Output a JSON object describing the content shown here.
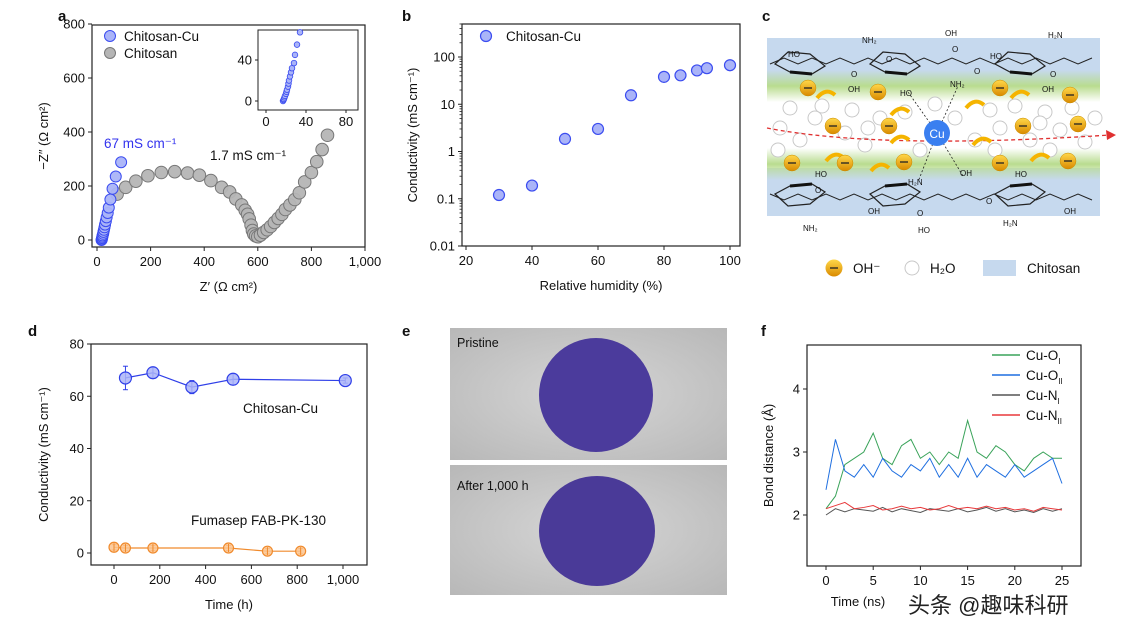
{
  "panel_labels": [
    "a",
    "b",
    "c",
    "d",
    "e",
    "f"
  ],
  "chart_data": [
    {
      "id": "a",
      "type": "scatter",
      "xlabel": "Z′ (Ω cm²)",
      "ylabel": "−Z″ (Ω cm²)",
      "xlim": [
        -10,
        1000
      ],
      "ylim": [
        -25,
        800
      ],
      "xticks": [
        0,
        200,
        400,
        600,
        800,
        1000
      ],
      "xtick_labels": [
        "0",
        "200",
        "400",
        "600",
        "800",
        "1,000"
      ],
      "yticks": [
        0,
        200,
        400,
        600,
        800
      ],
      "ytick_labels": [
        "0",
        "200",
        "400",
        "600",
        "800"
      ],
      "legend": "top-left",
      "annotations": [
        "67 mS cm⁻¹",
        "1.7 mS cm⁻¹"
      ],
      "series": [
        {
          "name": "Chitosan-Cu",
          "color": "#3b4cf0",
          "fill": "#aab4f8",
          "x": [
            17,
            18,
            19,
            20,
            21,
            23,
            24,
            26,
            28,
            30,
            33,
            36,
            40,
            44,
            50,
            58,
            70,
            90
          ],
          "y": [
            0,
            3,
            7,
            12,
            17,
            23,
            30,
            38,
            47,
            57,
            70,
            84,
            100,
            120,
            150,
            190,
            235,
            288
          ]
        },
        {
          "name": "Chitosan",
          "color": "#777777",
          "fill": "#b5b5b5",
          "x": [
            75,
            107,
            145,
            190,
            240,
            290,
            338,
            382,
            425,
            465,
            495,
            518,
            540,
            553,
            562,
            568,
            575,
            580,
            585,
            592,
            600,
            610,
            622,
            635,
            648,
            662,
            676,
            690,
            703,
            720,
            738,
            755,
            775,
            800,
            820,
            840,
            860
          ],
          "y": [
            170,
            195,
            218,
            238,
            250,
            253,
            248,
            240,
            220,
            195,
            178,
            152,
            130,
            110,
            95,
            78,
            55,
            35,
            22,
            15,
            12,
            18,
            28,
            38,
            50,
            65,
            80,
            95,
            113,
            130,
            150,
            175,
            215,
            250,
            290,
            335,
            388
          ]
        }
      ],
      "inset": {
        "xlim": [
          -5,
          88
        ],
        "ylim": [
          -5,
          68
        ],
        "xticks": [
          0,
          40,
          80
        ],
        "xtick_labels": [
          "0",
          "40",
          "80"
        ],
        "yticks": [
          0,
          40
        ],
        "ytick_labels": [
          "0",
          "40"
        ],
        "series": [
          {
            "name": "Chitosan-Cu",
            "x": [
              17,
              17.5,
              18,
              18.5,
              19,
              20,
              20.5,
              21,
              22,
              22.5,
              23,
              24,
              25,
              26,
              28,
              29,
              31,
              34
            ],
            "y": [
              0,
              1,
              2,
              3.5,
              5,
              7,
              9,
              11,
              14,
              17,
              20,
              24,
              28,
              32,
              37,
              45,
              55,
              67
            ]
          }
        ]
      }
    },
    {
      "id": "b",
      "type": "scatter",
      "xlabel": "Relative humidity (%)",
      "ylabel": "Conductivity (mS cm⁻¹)",
      "yscale": "log",
      "xlim": [
        19,
        102
      ],
      "ylim": [
        0.01,
        500
      ],
      "xticks": [
        20,
        40,
        60,
        80,
        100
      ],
      "xtick_labels": [
        "20",
        "40",
        "60",
        "80",
        "100"
      ],
      "yticks": [
        0.01,
        0.1,
        1,
        10,
        100
      ],
      "ytick_labels": [
        "0.01",
        "0.1",
        "1",
        "10",
        "100"
      ],
      "legend": "top-left",
      "series": [
        {
          "name": "Chitosan-Cu",
          "color": "#3b4cf0",
          "fill": "#aab4f8",
          "x": [
            30,
            40,
            50,
            60,
            70,
            80,
            85,
            90,
            93,
            100
          ],
          "y": [
            0.12,
            0.19,
            1.85,
            3.0,
            15.5,
            38,
            41,
            52,
            58,
            67
          ]
        }
      ]
    },
    {
      "id": "d",
      "type": "line",
      "xlabel": "Time (h)",
      "ylabel": "Conductivity (mS cm⁻¹)",
      "xlim": [
        -100,
        1100
      ],
      "ylim": [
        -5,
        80
      ],
      "xticks": [
        0,
        200,
        400,
        600,
        800,
        1000
      ],
      "xtick_labels": [
        "0",
        "200",
        "400",
        "600",
        "800",
        "1,000"
      ],
      "yticks": [
        0,
        20,
        40,
        60,
        80
      ],
      "ytick_labels": [
        "0",
        "20",
        "40",
        "60",
        "80"
      ],
      "series": [
        {
          "name": "Chitosan-Cu",
          "color": "#2f3fe8",
          "fill": "#aab4f8",
          "x": [
            50,
            170,
            340,
            520,
            1010
          ],
          "y": [
            67,
            69,
            63.5,
            66.5,
            66
          ],
          "err": [
            4.5,
            2,
            2.5,
            2,
            1
          ]
        },
        {
          "name": "Fumasep FAB-PK-130",
          "color": "#f08a2c",
          "fill": "#fbc48f",
          "x": [
            0,
            50,
            170,
            500,
            670,
            815
          ],
          "y": [
            2.2,
            1.9,
            1.9,
            1.9,
            0.7,
            0.7
          ],
          "err": [
            1,
            1,
            1,
            1,
            1,
            1
          ]
        }
      ]
    },
    {
      "id": "f",
      "type": "line",
      "xlabel": "Time (ns)",
      "ylabel": "Bond distance (Å)",
      "xlim": [
        -2,
        27
      ],
      "ylim": [
        1.3,
        4.7
      ],
      "xticks": [
        0,
        5,
        10,
        15,
        20,
        25
      ],
      "xtick_labels": [
        "0",
        "5",
        "10",
        "15",
        "20",
        "25"
      ],
      "yticks": [
        2,
        3,
        4
      ],
      "ytick_labels": [
        "2",
        "3",
        "4"
      ],
      "legend": "top-right",
      "x": [
        0,
        1,
        2,
        3,
        4,
        5,
        6,
        7,
        8,
        9,
        10,
        11,
        12,
        13,
        14,
        15,
        16,
        17,
        18,
        19,
        20,
        21,
        22,
        23,
        24,
        25
      ],
      "series": [
        {
          "name": "Cu-O",
          "sub": "I",
          "color": "#3aa35a",
          "y": [
            2.1,
            2.3,
            2.8,
            2.9,
            3.0,
            3.3,
            2.9,
            2.8,
            3.1,
            3.2,
            2.9,
            3.0,
            2.8,
            3.0,
            2.9,
            3.5,
            3.0,
            2.9,
            3.1,
            3.0,
            2.8,
            2.7,
            2.9,
            3.0,
            2.9,
            2.9
          ]
        },
        {
          "name": "Cu-O",
          "sub": "II",
          "color": "#1f6fe0",
          "y": [
            2.4,
            3.2,
            2.7,
            2.6,
            2.8,
            2.6,
            2.9,
            2.7,
            2.6,
            2.8,
            2.7,
            2.9,
            2.6,
            2.8,
            2.6,
            2.9,
            2.6,
            2.8,
            2.7,
            2.6,
            2.8,
            2.6,
            2.7,
            2.8,
            2.9,
            2.5
          ]
        },
        {
          "name": "Cu-N",
          "sub": "I",
          "color": "#555555",
          "y": [
            2.0,
            2.1,
            2.05,
            2.1,
            2.08,
            2.06,
            2.12,
            2.05,
            2.1,
            2.07,
            2.04,
            2.1,
            2.08,
            2.06,
            2.1,
            2.05,
            2.08,
            2.12,
            2.06,
            2.1,
            2.05,
            2.08,
            2.04,
            2.1,
            2.06,
            2.1
          ]
        },
        {
          "name": "Cu-N",
          "sub": "II",
          "color": "#e8393b",
          "y": [
            2.1,
            2.15,
            2.2,
            2.1,
            2.12,
            2.15,
            2.08,
            2.1,
            2.14,
            2.1,
            2.12,
            2.08,
            2.1,
            2.15,
            2.1,
            2.12,
            2.1,
            2.14,
            2.1,
            2.12,
            2.08,
            2.1,
            2.06,
            2.12,
            2.1,
            2.08
          ]
        }
      ]
    }
  ],
  "diagram_c": {
    "cu_label": "Cu",
    "chem_labels": [
      "NH₂",
      "HO",
      "OH",
      "H₂N",
      "HO",
      "OH",
      "HO",
      "NH₂",
      "OH",
      "HO",
      "H₂N",
      "OH",
      "HO",
      "OH",
      "NH₂",
      "HO",
      "H₂N",
      "OH",
      "O",
      "O",
      "O",
      "O",
      "O",
      "O",
      "O",
      "O"
    ],
    "legend": {
      "oh": "OH⁻",
      "water": "H₂O",
      "chitosan": "Chitosan"
    },
    "colors": {
      "chitosan_band": "#c6d9ee",
      "green_band": "#b9dc8f",
      "oh_ball": "#f0a800",
      "cu": "#3a7ff0",
      "path": "#e03030"
    }
  },
  "panel_e": {
    "photos": [
      {
        "label": "Pristine",
        "membrane_color": "#4b3b9c",
        "background": "#cfcfcf"
      },
      {
        "label": "After 1,000 h",
        "membrane_color": "#4a3a98",
        "background": "#cbcbcb"
      }
    ]
  },
  "watermark": "头条 @趣味科研"
}
